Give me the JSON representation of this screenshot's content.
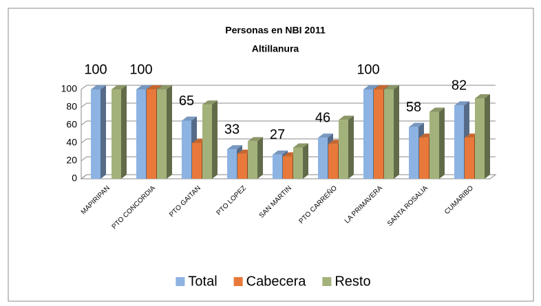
{
  "chart_data": {
    "type": "bar3d",
    "title": "Personas en NBI 2011",
    "subtitle": "Altillanura",
    "categories": [
      "MAPIRIPAN",
      "PTO CONCORDIA",
      "PTO GAITAN",
      "PTO LOPEZ",
      "SAN MARTIN",
      "PTO CARREÑO",
      "LA PRIMAVERA",
      "SANTA ROSALIA",
      "CUMARIBO"
    ],
    "series": [
      {
        "name": "Total",
        "color": "#8db3e2",
        "values": [
          100,
          100,
          65,
          33,
          27,
          46,
          100,
          58,
          82
        ],
        "data_labels": true
      },
      {
        "name": "Cabecera",
        "color": "#e8793a",
        "values": [
          null,
          100,
          40,
          28,
          25,
          39,
          100,
          46,
          46
        ]
      },
      {
        "name": "Resto",
        "color": "#a3b27a",
        "values": [
          100,
          100,
          83,
          42,
          35,
          66,
          100,
          75,
          90
        ]
      }
    ],
    "ylim": [
      0,
      100
    ],
    "yticks": [
      0,
      20,
      40,
      60,
      80,
      100
    ],
    "grid": true,
    "legend": "bottom"
  }
}
